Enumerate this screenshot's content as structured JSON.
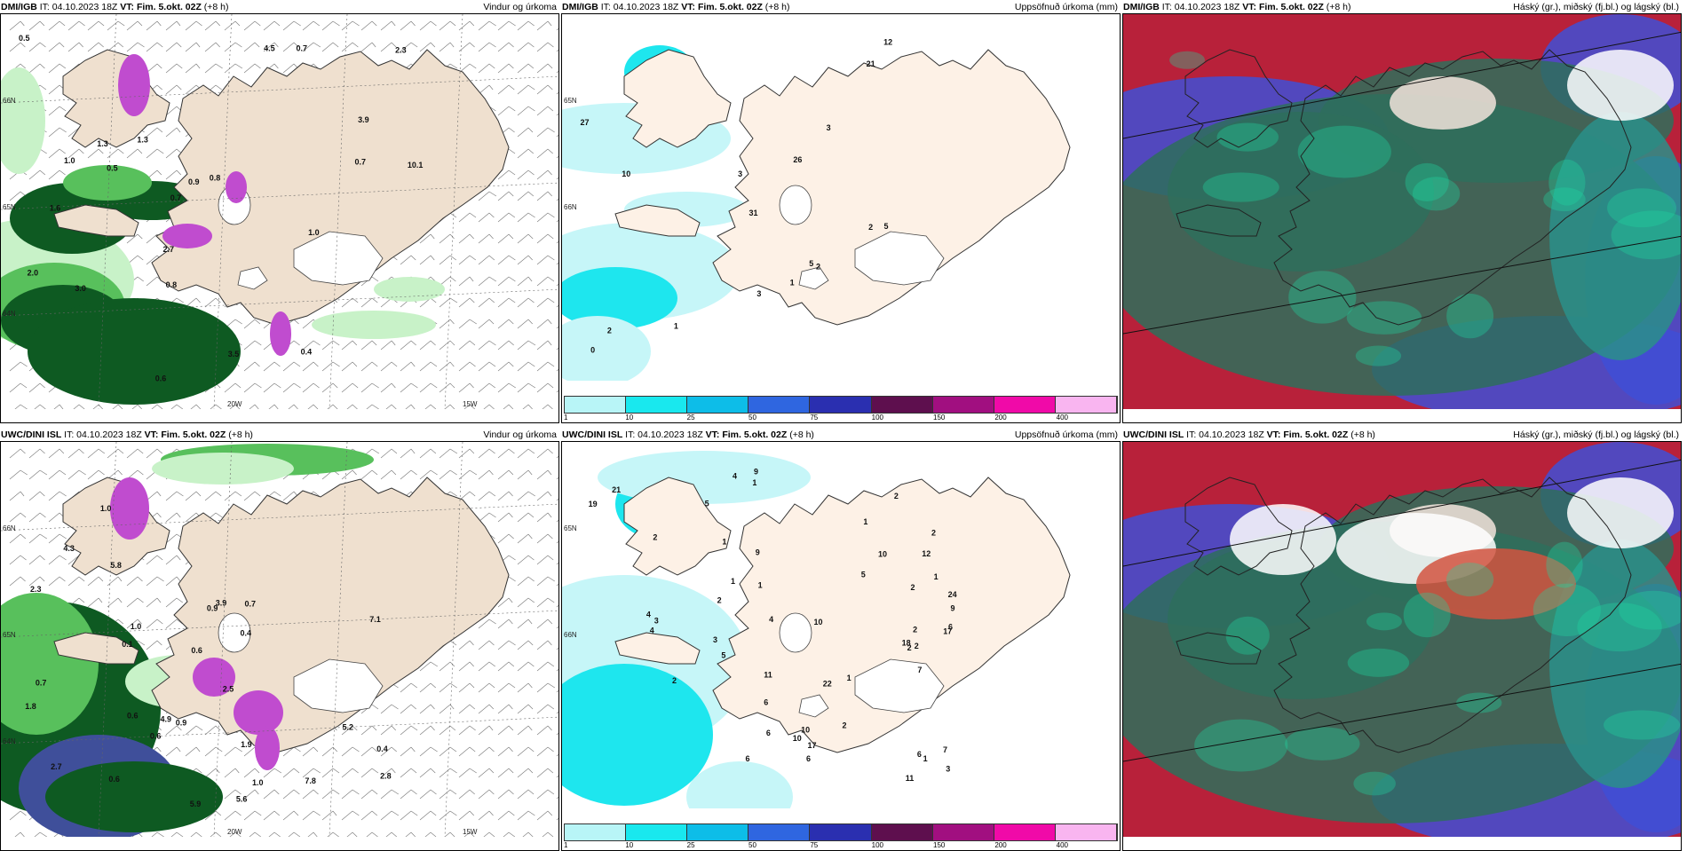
{
  "panels": [
    {
      "src": "DMI/IGB",
      "it": "IT: 04.10.2023 18Z",
      "vt_label": "VT:",
      "vt": "Fim. 5.okt. 02Z",
      "lead": "(+8 h)",
      "title": "Vindur og úrkoma",
      "labels": [
        "0.5",
        "0.9",
        "1.3",
        "1.0",
        "0.7",
        "0.8",
        "1.6",
        "10.1",
        "3.0",
        "0.7",
        "2.0",
        "0.4",
        "3.9",
        "0.8",
        "4.5",
        "2.3",
        "3.5",
        "2.7",
        "0.5",
        "0.6",
        "0.7",
        "1.0",
        "1.3"
      ],
      "axes": [
        "66N",
        "65N",
        "64N",
        "20W",
        "15W"
      ]
    },
    {
      "src": "DMI/IGB",
      "it": "IT: 04.10.2023 18Z",
      "vt_label": "VT:",
      "vt": "Fim. 5.okt. 02Z",
      "lead": "(+8 h)",
      "title": "Uppsöfnuð úrkoma (mm)",
      "labels": [
        "31",
        "3",
        "21",
        "3",
        "0",
        "5",
        "26",
        "27",
        "2",
        "1",
        "2",
        "1",
        "3",
        "2",
        "10",
        "5",
        "12"
      ],
      "axes": [
        "65N",
        "66N"
      ]
    },
    {
      "src": "DMI/IGB",
      "it": "IT: 04.10.2023 18Z",
      "vt_label": "VT:",
      "vt": "Fim. 5.okt. 02Z",
      "lead": "(+8 h)",
      "title": "Háský (gr.), miðský (fj.bl.) og lágský (bl.)",
      "labels": [],
      "axes": []
    },
    {
      "src": "UWC/DINI ISL",
      "it": "IT: 04.10.2023 18Z",
      "vt_label": "VT:",
      "vt": "Fim. 5.okt. 02Z",
      "lead": "(+8 h)",
      "title": "Vindur og úrkoma",
      "labels": [
        "0.6",
        "1.0",
        "4.3",
        "1.0",
        "0.6",
        "0.1",
        "0.4",
        "1.9",
        "1.8",
        "3.9",
        "2.7",
        "2.5",
        "4.9",
        "5.8",
        "0.7",
        "0.9",
        "0.6",
        "0.4",
        "2.8",
        "5.6",
        "5.9",
        "7.1",
        "5.2",
        "2.3",
        "7.8",
        "0.6",
        "0.7",
        "0.9",
        "1.0"
      ],
      "axes": [
        "66N",
        "65N",
        "64N",
        "20W",
        "15W"
      ]
    },
    {
      "src": "UWC/DINI ISL",
      "it": "IT: 04.10.2023 18Z",
      "vt_label": "VT:",
      "vt": "Fim. 5.okt. 02Z",
      "lead": "(+8 h)",
      "title": "Uppsöfnuð úrkoma (mm)",
      "labels": [
        "1",
        "1",
        "1",
        "4",
        "6",
        "2",
        "7",
        "2",
        "1",
        "10",
        "17",
        "2",
        "1",
        "2",
        "4",
        "6",
        "2",
        "2",
        "1",
        "2",
        "1",
        "4",
        "2",
        "3",
        "3",
        "6",
        "9",
        "11",
        "17",
        "7",
        "5",
        "5",
        "2",
        "3",
        "2",
        "9",
        "9",
        "10",
        "10",
        "11",
        "6",
        "19",
        "12",
        "5",
        "6",
        "6",
        "24",
        "10",
        "18",
        "22",
        "21",
        "4",
        "1"
      ],
      "axes": [
        "65N",
        "66N"
      ]
    },
    {
      "src": "UWC/DINI ISL",
      "it": "IT: 04.10.2023 18Z",
      "vt_label": "VT:",
      "vt": "Fim. 5.okt. 02Z",
      "lead": "(+8 h)",
      "title": "Háský (gr.), miðský (fj.bl.) og lágský (bl.)",
      "labels": [],
      "axes": []
    }
  ],
  "colorbar": {
    "colors": [
      "#b8f5f7",
      "#19e8ee",
      "#0dbde8",
      "#2f66e0",
      "#2a2fb0",
      "#5e0f4e",
      "#a10f80",
      "#f00aa8",
      "#f9b5f0"
    ],
    "ticks": [
      "1",
      "10",
      "25",
      "50",
      "75",
      "100",
      "150",
      "200",
      "400"
    ]
  },
  "colors": {
    "land": "#efe0cf",
    "land_precip": "#fdf1e6",
    "rain_light": "#c8f2c8",
    "rain_mid": "#58c05c",
    "rain_dark": "#0e5a22",
    "snow_magenta": "#c04ccf",
    "cloud_high": "#b8213a",
    "cloud_mid": "#2e6f5c",
    "cloud_low": "#3f4fd6"
  }
}
